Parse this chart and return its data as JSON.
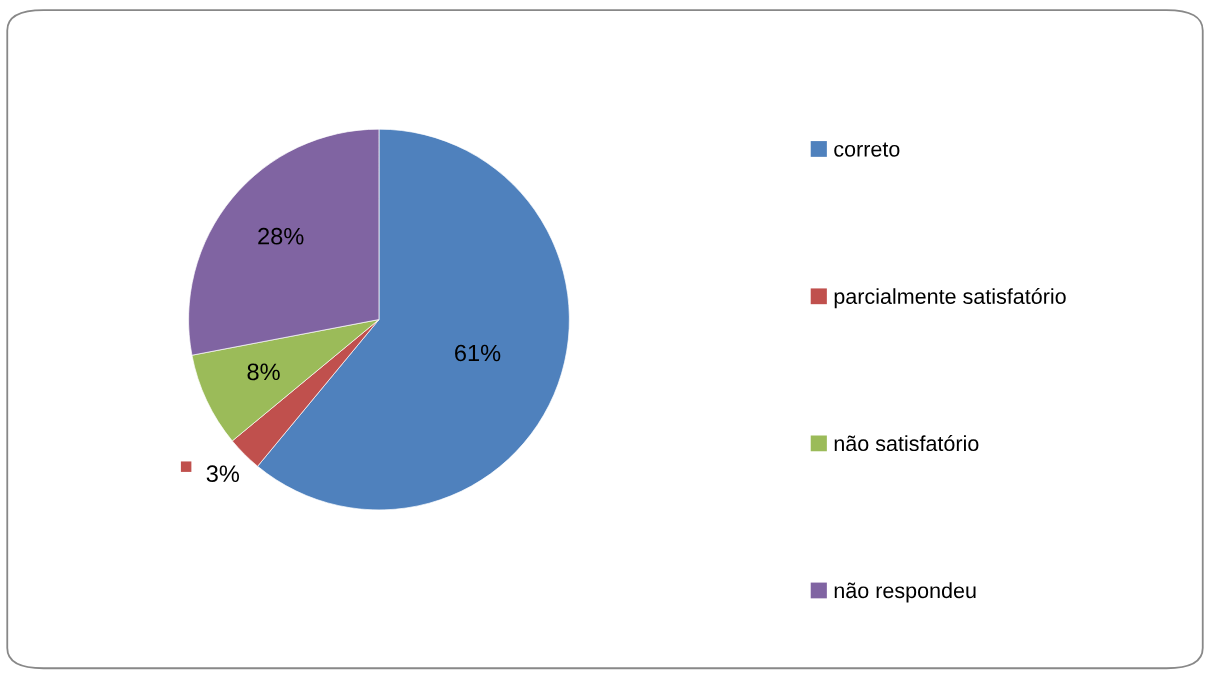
{
  "chart_data": {
    "type": "pie",
    "categories": [
      "correto",
      "parcialmente satisfatório",
      "não satisfatório",
      "não respondeu"
    ],
    "values": [
      61,
      3,
      8,
      28
    ],
    "value_labels": [
      "61%",
      "3%",
      "8%",
      "28%"
    ],
    "colors": [
      "#4f81bd",
      "#c0504d",
      "#9bbb59",
      "#8064a2"
    ],
    "legend": "right"
  }
}
